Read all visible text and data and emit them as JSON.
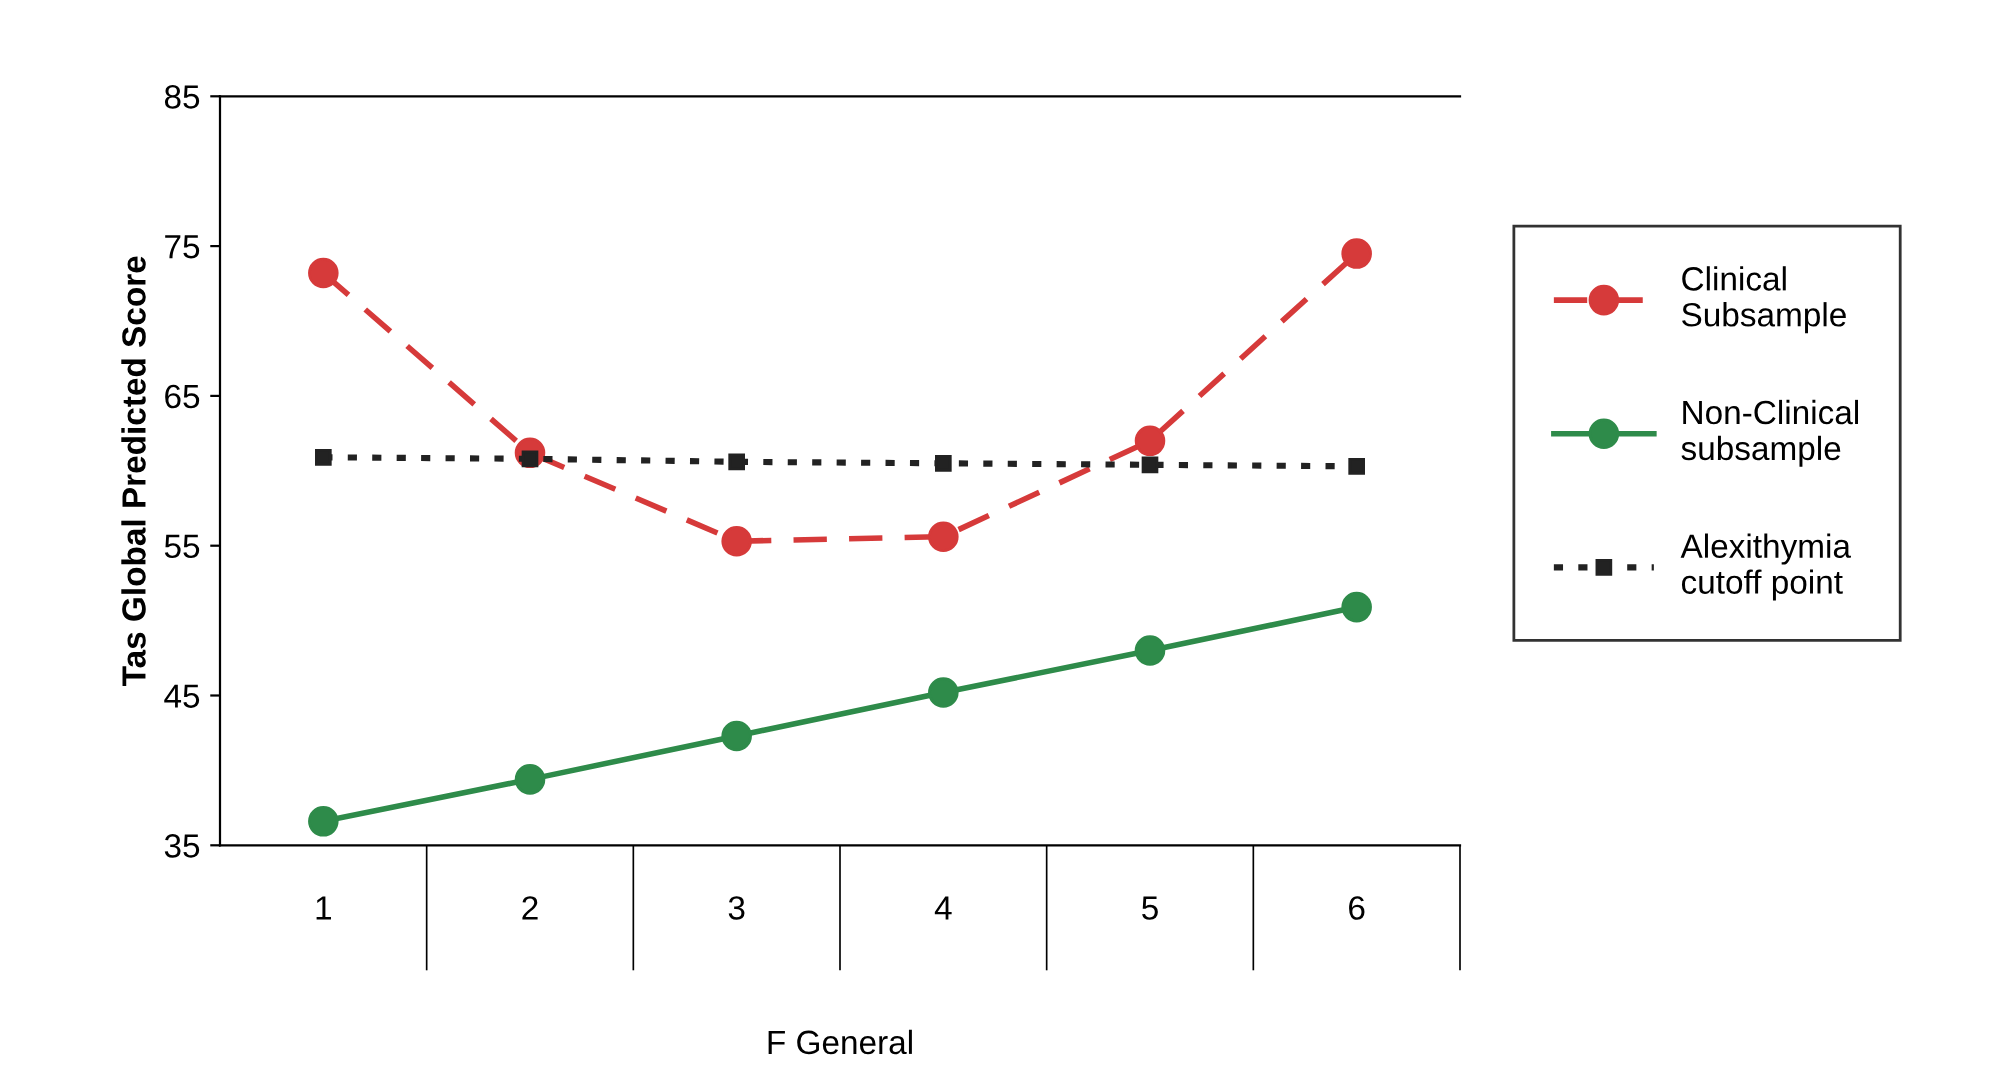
{
  "chart_data": {
    "type": "line",
    "xlabel": "F General",
    "ylabel": "Tas Global Predicted Score",
    "categories": [
      "1",
      "2",
      "3",
      "4",
      "5",
      "6"
    ],
    "series": [
      {
        "name": "Clinical Subsample",
        "color": "#d63a3a",
        "line_style": "dashed",
        "marker": "circle",
        "values": [
          73.2,
          61.2,
          55.3,
          55.6,
          62.0,
          74.5
        ]
      },
      {
        "name": "Non-Clinical subsample",
        "color": "#2e8b4a",
        "line_style": "solid",
        "marker": "circle",
        "values": [
          36.6,
          39.4,
          42.3,
          45.2,
          48.0,
          50.9
        ]
      },
      {
        "name": "Alexithymia cutoff point",
        "color": "#222222",
        "line_style": "dotted",
        "marker": "square",
        "values": [
          60.9,
          60.8,
          60.6,
          60.5,
          60.4,
          60.3
        ]
      }
    ],
    "ylim": [
      35,
      85
    ],
    "yticks": [
      35,
      45,
      55,
      65,
      75,
      85
    ],
    "grid": false,
    "legend": "right"
  }
}
